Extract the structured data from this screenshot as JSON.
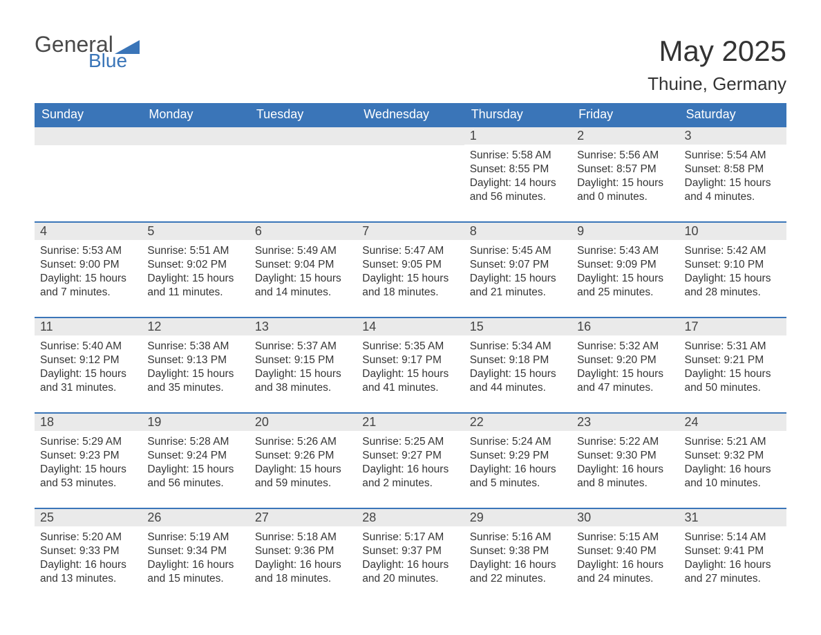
{
  "logo": {
    "text1": "General",
    "text2": "Blue",
    "shape_color": "#3a75b8"
  },
  "title": {
    "month": "May 2025",
    "location": "Thuine, Germany"
  },
  "colors": {
    "header_bg": "#3a75b8",
    "header_text": "#ffffff",
    "daynum_bg": "#eaeaea",
    "border": "#3a75b8",
    "body_text": "#353535",
    "page_bg": "#ffffff"
  },
  "typography": {
    "title_fontsize": 42,
    "location_fontsize": 26,
    "header_fontsize": 18,
    "daynum_fontsize": 18,
    "body_fontsize": 15.5,
    "font_family": "Arial"
  },
  "layout": {
    "columns": 7,
    "rows": 5,
    "first_day_column_index": 4
  },
  "weekdays": [
    "Sunday",
    "Monday",
    "Tuesday",
    "Wednesday",
    "Thursday",
    "Friday",
    "Saturday"
  ],
  "days": [
    {
      "n": "1",
      "sunrise": "Sunrise: 5:58 AM",
      "sunset": "Sunset: 8:55 PM",
      "daylight": "Daylight: 14 hours and 56 minutes."
    },
    {
      "n": "2",
      "sunrise": "Sunrise: 5:56 AM",
      "sunset": "Sunset: 8:57 PM",
      "daylight": "Daylight: 15 hours and 0 minutes."
    },
    {
      "n": "3",
      "sunrise": "Sunrise: 5:54 AM",
      "sunset": "Sunset: 8:58 PM",
      "daylight": "Daylight: 15 hours and 4 minutes."
    },
    {
      "n": "4",
      "sunrise": "Sunrise: 5:53 AM",
      "sunset": "Sunset: 9:00 PM",
      "daylight": "Daylight: 15 hours and 7 minutes."
    },
    {
      "n": "5",
      "sunrise": "Sunrise: 5:51 AM",
      "sunset": "Sunset: 9:02 PM",
      "daylight": "Daylight: 15 hours and 11 minutes."
    },
    {
      "n": "6",
      "sunrise": "Sunrise: 5:49 AM",
      "sunset": "Sunset: 9:04 PM",
      "daylight": "Daylight: 15 hours and 14 minutes."
    },
    {
      "n": "7",
      "sunrise": "Sunrise: 5:47 AM",
      "sunset": "Sunset: 9:05 PM",
      "daylight": "Daylight: 15 hours and 18 minutes."
    },
    {
      "n": "8",
      "sunrise": "Sunrise: 5:45 AM",
      "sunset": "Sunset: 9:07 PM",
      "daylight": "Daylight: 15 hours and 21 minutes."
    },
    {
      "n": "9",
      "sunrise": "Sunrise: 5:43 AM",
      "sunset": "Sunset: 9:09 PM",
      "daylight": "Daylight: 15 hours and 25 minutes."
    },
    {
      "n": "10",
      "sunrise": "Sunrise: 5:42 AM",
      "sunset": "Sunset: 9:10 PM",
      "daylight": "Daylight: 15 hours and 28 minutes."
    },
    {
      "n": "11",
      "sunrise": "Sunrise: 5:40 AM",
      "sunset": "Sunset: 9:12 PM",
      "daylight": "Daylight: 15 hours and 31 minutes."
    },
    {
      "n": "12",
      "sunrise": "Sunrise: 5:38 AM",
      "sunset": "Sunset: 9:13 PM",
      "daylight": "Daylight: 15 hours and 35 minutes."
    },
    {
      "n": "13",
      "sunrise": "Sunrise: 5:37 AM",
      "sunset": "Sunset: 9:15 PM",
      "daylight": "Daylight: 15 hours and 38 minutes."
    },
    {
      "n": "14",
      "sunrise": "Sunrise: 5:35 AM",
      "sunset": "Sunset: 9:17 PM",
      "daylight": "Daylight: 15 hours and 41 minutes."
    },
    {
      "n": "15",
      "sunrise": "Sunrise: 5:34 AM",
      "sunset": "Sunset: 9:18 PM",
      "daylight": "Daylight: 15 hours and 44 minutes."
    },
    {
      "n": "16",
      "sunrise": "Sunrise: 5:32 AM",
      "sunset": "Sunset: 9:20 PM",
      "daylight": "Daylight: 15 hours and 47 minutes."
    },
    {
      "n": "17",
      "sunrise": "Sunrise: 5:31 AM",
      "sunset": "Sunset: 9:21 PM",
      "daylight": "Daylight: 15 hours and 50 minutes."
    },
    {
      "n": "18",
      "sunrise": "Sunrise: 5:29 AM",
      "sunset": "Sunset: 9:23 PM",
      "daylight": "Daylight: 15 hours and 53 minutes."
    },
    {
      "n": "19",
      "sunrise": "Sunrise: 5:28 AM",
      "sunset": "Sunset: 9:24 PM",
      "daylight": "Daylight: 15 hours and 56 minutes."
    },
    {
      "n": "20",
      "sunrise": "Sunrise: 5:26 AM",
      "sunset": "Sunset: 9:26 PM",
      "daylight": "Daylight: 15 hours and 59 minutes."
    },
    {
      "n": "21",
      "sunrise": "Sunrise: 5:25 AM",
      "sunset": "Sunset: 9:27 PM",
      "daylight": "Daylight: 16 hours and 2 minutes."
    },
    {
      "n": "22",
      "sunrise": "Sunrise: 5:24 AM",
      "sunset": "Sunset: 9:29 PM",
      "daylight": "Daylight: 16 hours and 5 minutes."
    },
    {
      "n": "23",
      "sunrise": "Sunrise: 5:22 AM",
      "sunset": "Sunset: 9:30 PM",
      "daylight": "Daylight: 16 hours and 8 minutes."
    },
    {
      "n": "24",
      "sunrise": "Sunrise: 5:21 AM",
      "sunset": "Sunset: 9:32 PM",
      "daylight": "Daylight: 16 hours and 10 minutes."
    },
    {
      "n": "25",
      "sunrise": "Sunrise: 5:20 AM",
      "sunset": "Sunset: 9:33 PM",
      "daylight": "Daylight: 16 hours and 13 minutes."
    },
    {
      "n": "26",
      "sunrise": "Sunrise: 5:19 AM",
      "sunset": "Sunset: 9:34 PM",
      "daylight": "Daylight: 16 hours and 15 minutes."
    },
    {
      "n": "27",
      "sunrise": "Sunrise: 5:18 AM",
      "sunset": "Sunset: 9:36 PM",
      "daylight": "Daylight: 16 hours and 18 minutes."
    },
    {
      "n": "28",
      "sunrise": "Sunrise: 5:17 AM",
      "sunset": "Sunset: 9:37 PM",
      "daylight": "Daylight: 16 hours and 20 minutes."
    },
    {
      "n": "29",
      "sunrise": "Sunrise: 5:16 AM",
      "sunset": "Sunset: 9:38 PM",
      "daylight": "Daylight: 16 hours and 22 minutes."
    },
    {
      "n": "30",
      "sunrise": "Sunrise: 5:15 AM",
      "sunset": "Sunset: 9:40 PM",
      "daylight": "Daylight: 16 hours and 24 minutes."
    },
    {
      "n": "31",
      "sunrise": "Sunrise: 5:14 AM",
      "sunset": "Sunset: 9:41 PM",
      "daylight": "Daylight: 16 hours and 27 minutes."
    }
  ]
}
